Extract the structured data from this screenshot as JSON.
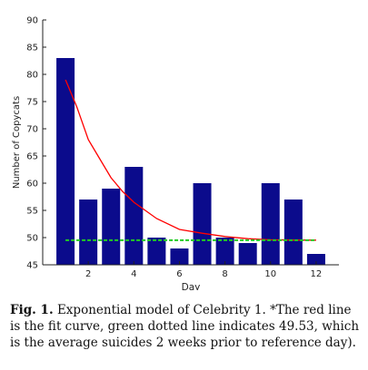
{
  "chart_data": {
    "type": "bar",
    "ylabel": "Number of Copycats",
    "xlabel": "Day",
    "ylim": [
      45,
      90
    ],
    "xlim": [
      0,
      13
    ],
    "x": [
      1,
      2,
      3,
      4,
      5,
      6,
      7,
      8,
      9,
      10,
      11,
      12
    ],
    "values": [
      83,
      57,
      59,
      63,
      50,
      48,
      60,
      50,
      49,
      60,
      57,
      47
    ],
    "yticks": [
      45,
      50,
      55,
      60,
      65,
      70,
      75,
      80,
      85,
      90
    ],
    "xticks": [
      2,
      4,
      6,
      8,
      10,
      12
    ],
    "bar_color": "#0b0b8c",
    "fit_curve": {
      "color": "#ff0000",
      "x": [
        1,
        1.5,
        2,
        2.5,
        3,
        3.5,
        4,
        5,
        6,
        7,
        8,
        9,
        10,
        11,
        12
      ],
      "y": [
        79,
        74,
        68,
        64.5,
        61,
        58.5,
        56.5,
        53.5,
        51.5,
        50.8,
        50.2,
        49.8,
        49.6,
        49.55,
        49.53
      ]
    },
    "reference_line": {
      "value": 49.53,
      "color": "#22cc22",
      "x": [
        1,
        12
      ]
    }
  },
  "caption": {
    "label": "Fig. 1.",
    "text": "Exponential model of Celebrity 1. *The red line is the fit curve, green dotted line indicates 49.53, which is the average suicides 2 weeks prior to reference day)."
  }
}
